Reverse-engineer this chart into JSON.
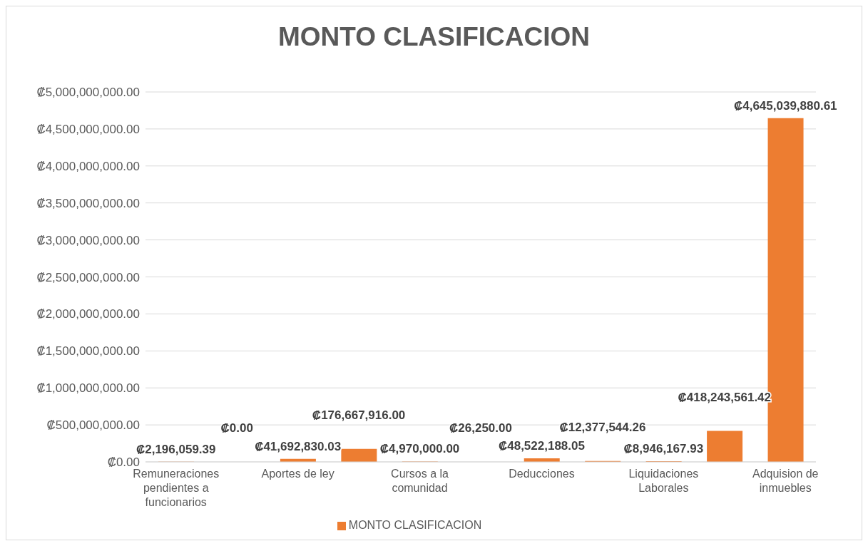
{
  "chart_data": {
    "type": "bar",
    "title": "MONTO CLASIFICACION",
    "categories": [
      "Remuneraciones pendientes a funcionarios",
      null,
      "Aportes de ley",
      null,
      "Cursos a la comunidad",
      null,
      "Deducciones",
      null,
      "Liquidaciones Laborales",
      null,
      "Adquision de inmuebles"
    ],
    "series": [
      {
        "name": "MONTO CLASIFICACION",
        "color": "#ed7d31",
        "values": [
          2196059.39,
          0,
          41692830.03,
          176667916,
          4970000,
          26250,
          48522188.05,
          12377544.26,
          8946167.93,
          418243561.42,
          4645039880.61
        ],
        "value_labels": [
          "₡2,196,059.39",
          "₡0.00",
          "₡41,692,830.03",
          "₡176,667,916.00",
          "₡4,970,000.00",
          "₡26,250.00",
          "₡48,522,188.05",
          "₡12,377,544.26",
          "₡8,946,167.93",
          "₡418,243,561.42",
          "₡4,645,039,880.61"
        ]
      }
    ],
    "ylim": [
      0,
      5000000000
    ],
    "yticks": [
      {
        "value": 0,
        "label": "₡0.00"
      },
      {
        "value": 500000000,
        "label": "₡500,000,000.00"
      },
      {
        "value": 1000000000,
        "label": "₡1,000,000,000.00"
      },
      {
        "value": 1500000000,
        "label": "₡1,500,000,000.00"
      },
      {
        "value": 2000000000,
        "label": "₡2,000,000,000.00"
      },
      {
        "value": 2500000000,
        "label": "₡2,500,000,000.00"
      },
      {
        "value": 3000000000,
        "label": "₡3,000,000,000.00"
      },
      {
        "value": 3500000000,
        "label": "₡3,500,000,000.00"
      },
      {
        "value": 4000000000,
        "label": "₡4,000,000,000.00"
      },
      {
        "value": 4500000000,
        "label": "₡4,500,000,000.00"
      },
      {
        "value": 5000000000,
        "label": "₡5,000,000,000.00"
      }
    ],
    "grid": "y",
    "legend": "bottom"
  }
}
